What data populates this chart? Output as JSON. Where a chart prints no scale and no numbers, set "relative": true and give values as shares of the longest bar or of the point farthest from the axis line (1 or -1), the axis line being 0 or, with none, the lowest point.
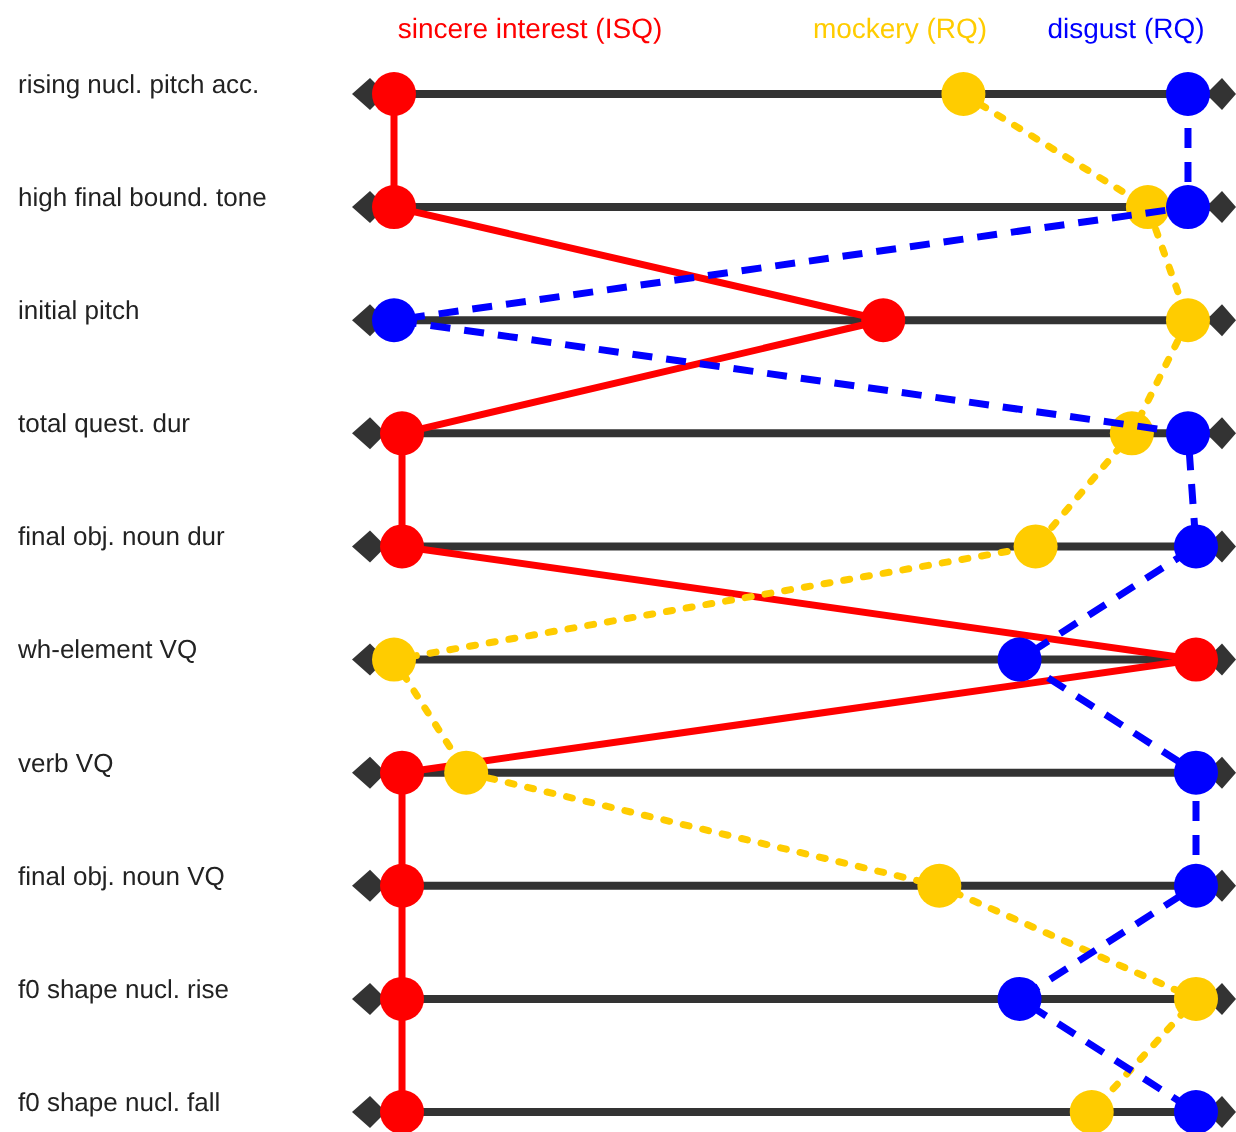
{
  "chart_data": {
    "type": "line",
    "orientation": "horizontal",
    "relative": true,
    "grid": "y",
    "legend": "top",
    "marker": "circle",
    "categories": [
      "rising nucl. pitch acc.",
      "high final bound. tone",
      "initial pitch",
      "total quest. dur",
      "final obj. noun dur",
      "wh-element VQ",
      "verb VQ",
      "final obj. noun VQ",
      "f0 shape nucl. rise",
      "f0 shape nucl. fall"
    ],
    "series": [
      {
        "name": "sincere interest (ISQ)",
        "color": "#ff0000",
        "line_style": "solid",
        "values": [
          0,
          0,
          0.61,
          0.01,
          0.01,
          1,
          0.01,
          0.01,
          0.01,
          0.01
        ]
      },
      {
        "name": "mockery (RQ)",
        "color": "#ffcc00",
        "line_style": "dotted",
        "values": [
          0.71,
          0.94,
          0.99,
          0.92,
          0.8,
          0,
          0.09,
          0.68,
          1,
          0.87
        ]
      },
      {
        "name": "disgust (RQ)",
        "color": "#0000ff",
        "line_style": "dashed",
        "values": [
          0.99,
          0.99,
          0,
          0.99,
          1,
          0.78,
          1,
          1,
          0.78,
          1
        ]
      }
    ]
  }
}
